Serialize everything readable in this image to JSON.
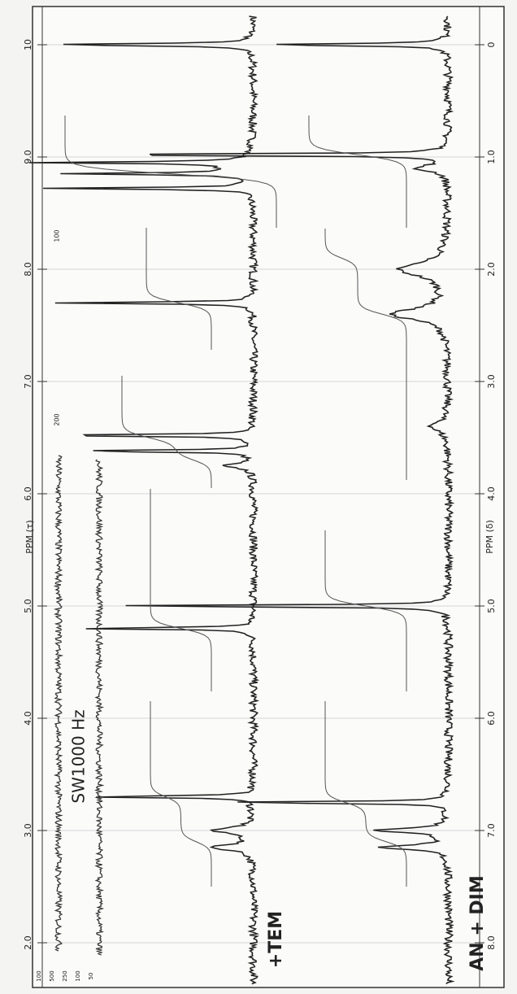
{
  "axis_top": {
    "label": "PPM (τ)",
    "ticks": [
      "10",
      "9.0",
      "8.0",
      "7.0",
      "6.0",
      "5.0",
      "4.0",
      "3.0",
      "2.0"
    ]
  },
  "axis_bottom": {
    "label": "PPM (δ)",
    "ticks": [
      "0",
      "1.0",
      "2.0",
      "3.0",
      "4.0",
      "5.0",
      "6.0",
      "7.0",
      "8.0"
    ]
  },
  "scale_labels": [
    "100",
    "500",
    "250",
    "100",
    "50"
  ],
  "integral_labels": [
    "100",
    "200"
  ],
  "annotations": {
    "sweep": "SW1000 Hz",
    "spectrum_1": "+TEM",
    "spectrum_2": "AN + DIM"
  }
}
